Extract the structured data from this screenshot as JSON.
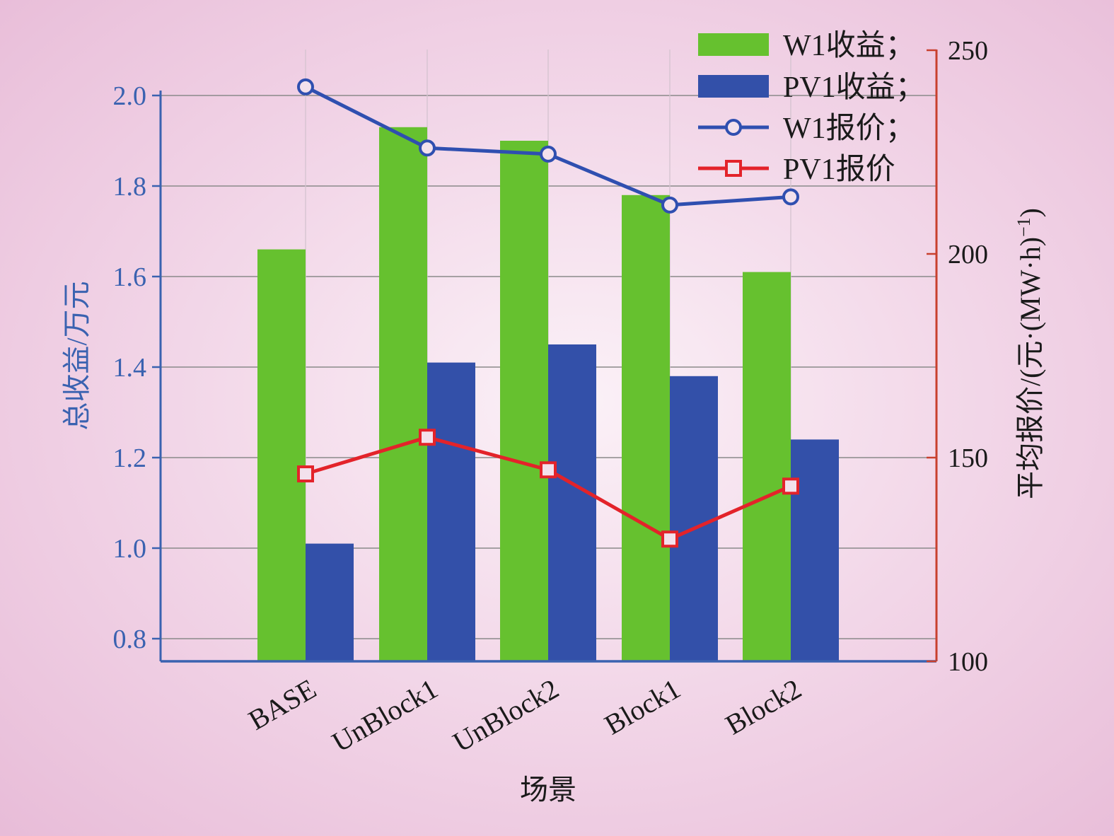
{
  "chart_data": {
    "type": "bar",
    "categories": [
      "BASE",
      "UnBlock1",
      "UnBlock2",
      "Block1",
      "Block2"
    ],
    "xlabel": "场景",
    "ylabel_left": "总收益/万元",
    "ylabel_right": "平均报价/(元·(MW·h)",
    "ylabel_right_sup": "−1",
    "ylabel_right_end": ")",
    "ylim_left": [
      0.75,
      2.0
    ],
    "ylim_right": [
      100,
      250
    ],
    "yticks_left": [
      "0.8",
      "1.0",
      "1.2",
      "1.4",
      "1.6",
      "1.8",
      "2.0"
    ],
    "yticks_right": [
      "100",
      "150",
      "200",
      "250"
    ],
    "grid": true,
    "legend_position": "top-right",
    "bar_series": [
      {
        "name": "W1收益；",
        "axis": "left",
        "color": "#66c12f",
        "values": [
          1.66,
          1.93,
          1.9,
          1.78,
          1.61
        ]
      },
      {
        "name": "PV1收益；",
        "axis": "left",
        "color": "#3350a9",
        "values": [
          1.01,
          1.41,
          1.45,
          1.38,
          1.24
        ]
      }
    ],
    "line_series": [
      {
        "name": "W1报价；",
        "axis": "right",
        "color": "#2f4fb0",
        "marker": "circle",
        "values": [
          241,
          226,
          224.5,
          212,
          214
        ]
      },
      {
        "name": "PV1报价",
        "axis": "right",
        "color": "#e3232a",
        "marker": "square",
        "values": [
          146,
          155,
          147,
          130,
          143
        ]
      }
    ],
    "colors": {
      "left_axis": "#3a62b0",
      "right_axis": "#c8402e",
      "grid": "#8a8a8a"
    }
  }
}
